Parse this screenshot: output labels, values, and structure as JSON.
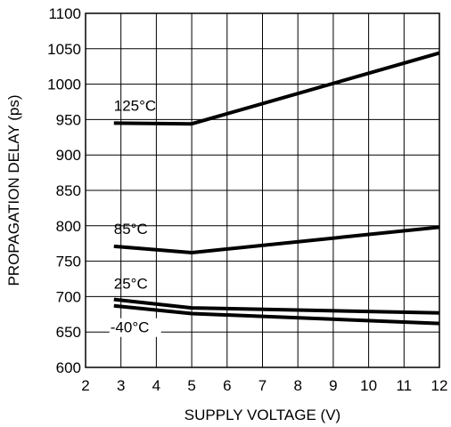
{
  "chart_data": {
    "type": "line",
    "xlabel": "SUPPLY VOLTAGE (V)",
    "ylabel": "PROPAGATION DELAY (ps)",
    "xlim": [
      2,
      12
    ],
    "ylim": [
      600,
      1100
    ],
    "xticks": [
      2,
      3,
      4,
      5,
      6,
      7,
      8,
      9,
      10,
      11,
      12
    ],
    "yticks": [
      600,
      650,
      700,
      750,
      800,
      850,
      900,
      950,
      1000,
      1050,
      1100
    ],
    "grid": true,
    "series": [
      {
        "name": "125°C",
        "x": [
          2.8,
          5.0,
          12.0
        ],
        "y": [
          945,
          944,
          1044
        ]
      },
      {
        "name": "85°C",
        "x": [
          2.8,
          5.0,
          12.0
        ],
        "y": [
          771,
          762,
          798
        ]
      },
      {
        "name": "25°C",
        "x": [
          2.8,
          5.0,
          12.0
        ],
        "y": [
          696,
          684,
          677
        ]
      },
      {
        "name": "-40°C",
        "x": [
          2.8,
          5.0,
          12.0
        ],
        "y": [
          687,
          676,
          662
        ]
      }
    ]
  }
}
